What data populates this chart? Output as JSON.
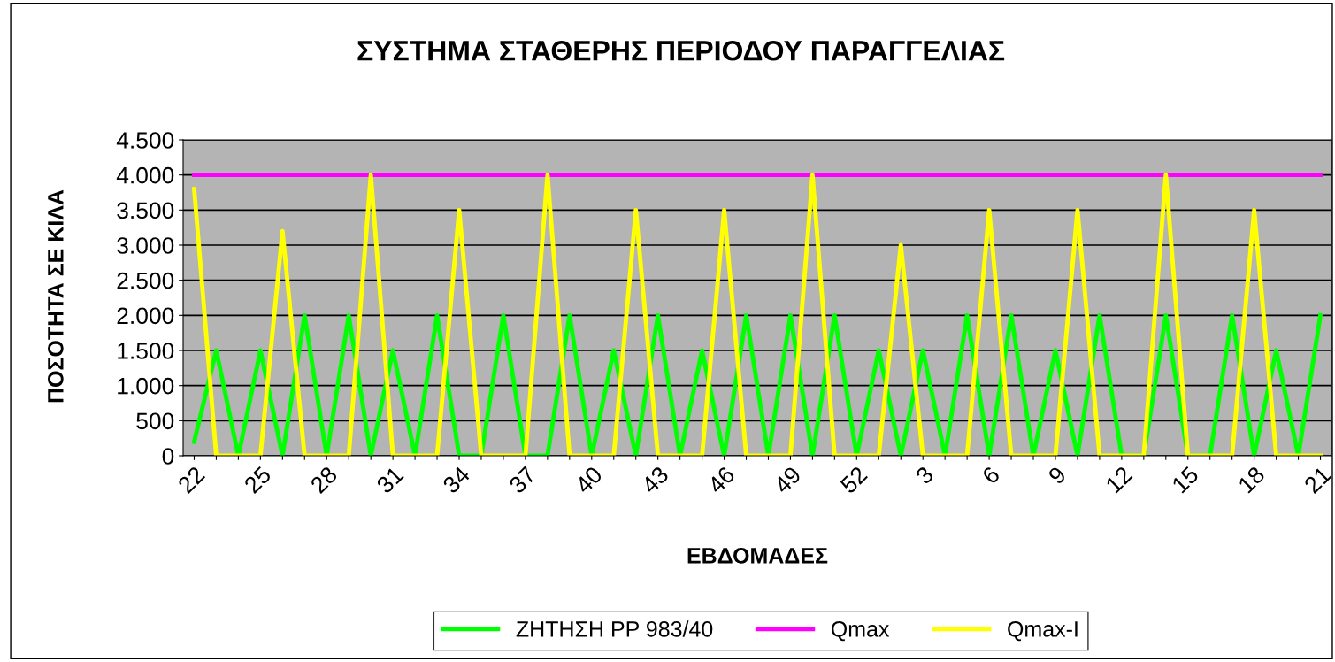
{
  "chart_data": {
    "type": "line",
    "title": "ΣΥΣΤΗΜΑ ΣΤΑΘΕΡΗΣ ΠΕΡΙΟΔΟΥ ΠΑΡΑΓΓΕΛΙΑΣ",
    "xlabel": "ΕΒΔΟΜΑΔΕΣ",
    "ylabel": "ΠΟΣΟΤΗΤΑ ΣΕ ΚΙΛΑ",
    "categories": [
      "22",
      null,
      null,
      "25",
      null,
      null,
      "28",
      null,
      null,
      "31",
      null,
      null,
      "34",
      null,
      null,
      "37",
      null,
      null,
      "40",
      null,
      null,
      "43",
      null,
      null,
      "46",
      null,
      null,
      "49",
      null,
      null,
      "52",
      null,
      null,
      "3",
      null,
      null,
      "6",
      null,
      null,
      "9",
      null,
      null,
      "12",
      null,
      null,
      "15",
      null,
      null,
      "18",
      null,
      null,
      "21"
    ],
    "series": [
      {
        "name": "ΖΗΤΗΣΗ PP 983/40",
        "color": "#00ff00",
        "values": [
          200,
          1500,
          0,
          1500,
          0,
          2000,
          0,
          2000,
          0,
          1500,
          0,
          2000,
          0,
          0,
          2000,
          0,
          0,
          2000,
          0,
          1500,
          0,
          2000,
          0,
          1500,
          0,
          2000,
          0,
          2000,
          0,
          2000,
          0,
          1500,
          0,
          1500,
          0,
          2000,
          0,
          2000,
          0,
          1500,
          0,
          2000,
          0,
          0,
          2000,
          0,
          0,
          2000,
          0,
          1500,
          0,
          2000
        ]
      },
      {
        "name": "Qmax",
        "color": "#ff00ff",
        "values": [
          4000,
          4000,
          4000,
          4000,
          4000,
          4000,
          4000,
          4000,
          4000,
          4000,
          4000,
          4000,
          4000,
          4000,
          4000,
          4000,
          4000,
          4000,
          4000,
          4000,
          4000,
          4000,
          4000,
          4000,
          4000,
          4000,
          4000,
          4000,
          4000,
          4000,
          4000,
          4000,
          4000,
          4000,
          4000,
          4000,
          4000,
          4000,
          4000,
          4000,
          4000,
          4000,
          4000,
          4000,
          4000,
          4000,
          4000,
          4000,
          4000,
          4000,
          4000,
          4000
        ]
      },
      {
        "name": "Qmax-I",
        "color": "#ffff00",
        "values": [
          3800,
          0,
          0,
          0,
          3200,
          0,
          0,
          0,
          4000,
          0,
          0,
          0,
          3500,
          0,
          0,
          0,
          4000,
          0,
          0,
          0,
          3500,
          0,
          0,
          0,
          3500,
          0,
          0,
          0,
          4000,
          0,
          0,
          0,
          3000,
          0,
          0,
          0,
          3500,
          0,
          0,
          0,
          3500,
          0,
          0,
          0,
          4000,
          0,
          0,
          0,
          3500,
          0,
          0,
          0
        ]
      }
    ],
    "ylim": [
      0,
      4500
    ],
    "yticks": [
      0,
      500,
      {
        "value": 1000,
        "label": "1.000"
      },
      {
        "value": 1500,
        "label": "1.500"
      },
      {
        "value": 2000,
        "label": "2.000"
      },
      {
        "value": 2500,
        "label": "2.500"
      },
      {
        "value": 3000,
        "label": "3.000"
      },
      {
        "value": 3500,
        "label": "3.500"
      },
      {
        "value": 4000,
        "label": "4.000"
      },
      {
        "value": 4500,
        "label": "4.500"
      }
    ],
    "grid": "y",
    "legend": "bottom"
  }
}
